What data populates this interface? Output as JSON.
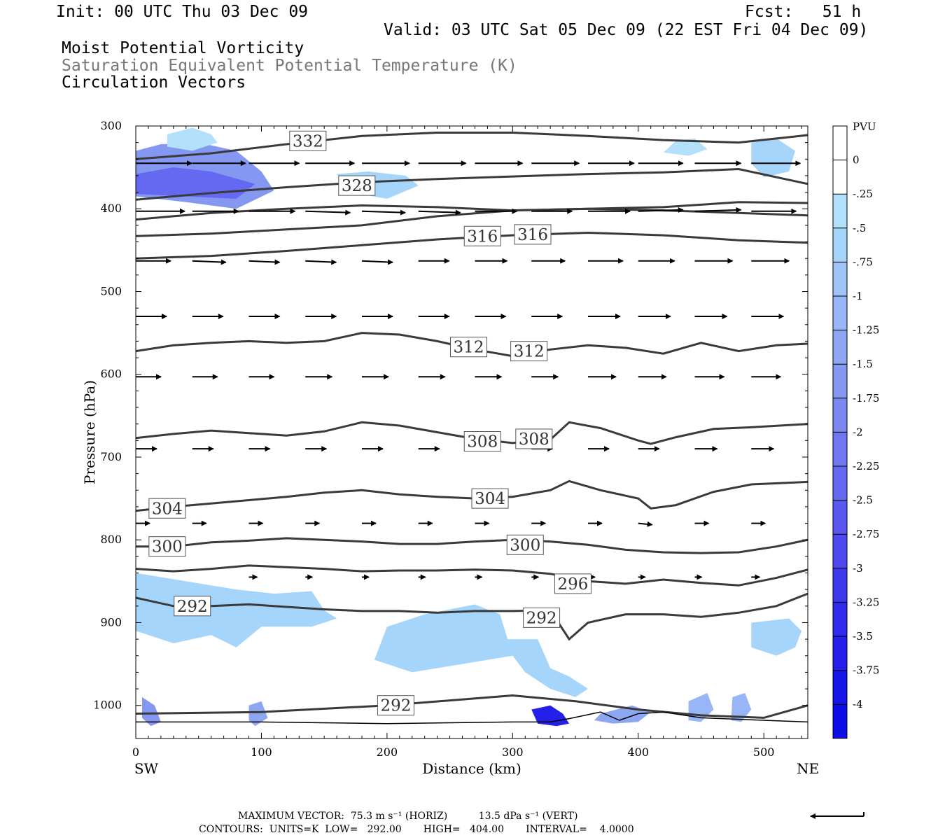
{
  "header": {
    "init": "Init: 00 UTC Thu 03 Dec 09",
    "fcst": "Fcst:   51 h",
    "valid": "Valid: 03 UTC Sat 05 Dec 09 (22 EST Fri 04 Dec 09)",
    "line1": "Moist Potential Vorticity",
    "line2": "Saturation Equivalent Potential Temperature (K)",
    "line3": "Circulation Vectors"
  },
  "colors": {
    "isentrope": "#3a3a3a",
    "mpv_light": "#b3e0fb",
    "mpv_mid": "#8ea7f3",
    "mpv_dark": "#5f6cf0",
    "mpv_darkest": "#1417e8"
  },
  "footer": {
    "max_vector": "MAXIMUM VECTOR:  75.3 m s⁻¹ (HORIZ)          13.5 dPa s⁻¹ (VERT)",
    "contours": "CONTOURS:  UNITS=K  LOW=   292.00       HIGH=   404.00       INTERVAL=    4.0000"
  },
  "chart_data": {
    "type": "line",
    "ylabel": "Pressure (hPa)",
    "xlabel": "Distance (km)",
    "x_end_labels": [
      "SW",
      "NE"
    ],
    "xlim": [
      0,
      535
    ],
    "ylim": [
      1040,
      300
    ],
    "x_ticks": [
      "0",
      "100",
      "200",
      "300",
      "400",
      "500"
    ],
    "y_ticks": [
      "300",
      "400",
      "500",
      "600",
      "700",
      "800",
      "900",
      "1000"
    ],
    "isentropes": [
      {
        "label": "332",
        "label_x": 137,
        "x": [
          0,
          60,
          120,
          180,
          240,
          300,
          360,
          420,
          480,
          535
        ],
        "p": [
          340,
          333,
          322,
          312,
          308,
          308,
          312,
          317,
          320,
          311
        ]
      },
      {
        "label": "328",
        "label_x": 175,
        "x": [
          0,
          60,
          120,
          180,
          240,
          300,
          360,
          420,
          480,
          535
        ],
        "p": [
          389,
          381,
          374,
          368,
          364,
          361,
          358,
          356,
          352,
          370
        ]
      },
      {
        "label": "",
        "label_x": null,
        "x": [
          0,
          60,
          120,
          180,
          240,
          300,
          360,
          420,
          480,
          535
        ],
        "p": [
          413,
          405,
          400,
          396,
          398,
          402,
          400,
          398,
          392,
          393
        ]
      },
      {
        "label": "316",
        "label_x": 275,
        "x": [
          0,
          60,
          120,
          180,
          240,
          300,
          360,
          420,
          480,
          535
        ],
        "p": [
          433,
          430,
          425,
          420,
          409,
          402,
          400,
          402,
          405,
          408
        ]
      },
      {
        "label": "316",
        "label_x": 315,
        "x": [
          0,
          60,
          120,
          180,
          240,
          300,
          360,
          420,
          480,
          535
        ],
        "p": [
          460,
          457,
          451,
          444,
          437,
          432,
          429,
          432,
          438,
          441
        ]
      },
      {
        "label": "312",
        "label_x": 265,
        "x": [
          0,
          30,
          60,
          90,
          120,
          150,
          180,
          210,
          240,
          270,
          300,
          330,
          360,
          390,
          420,
          450,
          480,
          510,
          535
        ],
        "p": [
          572,
          565,
          562,
          560,
          562,
          560,
          550,
          552,
          560,
          570,
          578,
          570,
          565,
          568,
          575,
          562,
          572,
          565,
          563
        ]
      },
      {
        "label": "312",
        "label_x": 312,
        "x": [],
        "p": []
      },
      {
        "label": "308",
        "label_x": 280,
        "x": [
          0,
          30,
          60,
          90,
          120,
          150,
          180,
          210,
          240,
          270,
          300,
          330,
          345,
          370,
          400,
          410,
          430,
          460,
          490,
          535
        ],
        "p": [
          677,
          672,
          668,
          671,
          674,
          669,
          658,
          662,
          670,
          678,
          683,
          679,
          658,
          665,
          680,
          684,
          676,
          666,
          664,
          660
        ]
      },
      {
        "label": "308",
        "label_x": 315,
        "x": [],
        "p": []
      },
      {
        "label": "304",
        "label_x": 25,
        "x": [
          0,
          30,
          60,
          90,
          120,
          150,
          180,
          210,
          240,
          270,
          300,
          330,
          345,
          370,
          400,
          410,
          430,
          460,
          490,
          535
        ],
        "p": [
          765,
          760,
          756,
          752,
          748,
          743,
          740,
          745,
          748,
          750,
          748,
          740,
          729,
          740,
          750,
          762,
          758,
          742,
          733,
          730
        ]
      },
      {
        "label": "300",
        "label_x": 25,
        "x": [
          0,
          30,
          60,
          90,
          120,
          150,
          180,
          210,
          240,
          270,
          300,
          330,
          360,
          390,
          420,
          450,
          480,
          510,
          535
        ],
        "p": [
          808,
          808,
          803,
          801,
          798,
          800,
          802,
          805,
          805,
          802,
          800,
          802,
          806,
          812,
          815,
          816,
          815,
          808,
          800
        ]
      },
      {
        "label": "296",
        "label_x": 350,
        "x": [
          0,
          30,
          60,
          90,
          120,
          150,
          180,
          210,
          240,
          270,
          300,
          330,
          360,
          390,
          420,
          450,
          480,
          510,
          535
        ],
        "p": [
          835,
          838,
          835,
          831,
          833,
          835,
          838,
          837,
          837,
          836,
          837,
          841,
          850,
          853,
          848,
          852,
          855,
          846,
          836
        ]
      },
      {
        "label": "292",
        "label_x": 45,
        "x": [
          0,
          30,
          60,
          90,
          120,
          150,
          180,
          210,
          240,
          270,
          300,
          330,
          345,
          360,
          390,
          420,
          450,
          480,
          510,
          535
        ],
        "p": [
          870,
          880,
          880,
          878,
          881,
          884,
          886,
          886,
          888,
          886,
          886,
          885,
          920,
          900,
          890,
          890,
          893,
          888,
          880,
          865
        ]
      },
      {
        "label": "292",
        "label_x": 210,
        "x": [
          0,
          100,
          200,
          300,
          350,
          400,
          450,
          500,
          535
        ],
        "p": [
          1010,
          1008,
          1000,
          988,
          995,
          1005,
          1012,
          1015,
          1000
        ]
      }
    ],
    "mpv_legend": {
      "units": "PVU",
      "levels": [
        "0",
        "-.25",
        "-.5",
        "-.75",
        "-1",
        "-1.25",
        "-1.5",
        "-1.75",
        "-2",
        "-2.25",
        "-2.5",
        "-2.75",
        "-3",
        "-3.25",
        "-3.5",
        "-3.75",
        "-4"
      ],
      "colors": [
        "#ffffff",
        "#ffffff",
        "#b3e0fb",
        "#a6d5fb",
        "#9fc5f8",
        "#98b6f7",
        "#8ea7f3",
        "#8498f1",
        "#7a87f0",
        "#6f78f0",
        "#6568f1",
        "#5a58f0",
        "#4d49ee",
        "#3f39ee",
        "#3129ec",
        "#2420ea",
        "#1417e8",
        "#0b0ee6"
      ]
    },
    "mpv_regions": [
      {
        "x": [
          0,
          20,
          50,
          80,
          100,
          110,
          80,
          40,
          0
        ],
        "p": [
          330,
          322,
          320,
          330,
          355,
          378,
          400,
          392,
          385
        ],
        "level": -1.5
      },
      {
        "x": [
          0,
          30,
          60,
          95,
          80,
          40,
          0
        ],
        "p": [
          358,
          350,
          355,
          370,
          388,
          385,
          382
        ],
        "level": -2.25
      },
      {
        "x": [
          160,
          185,
          215,
          225,
          200,
          170
        ],
        "p": [
          358,
          355,
          360,
          372,
          388,
          380
        ],
        "level": -0.5
      },
      {
        "x": [
          25,
          45,
          60,
          65,
          45,
          25
        ],
        "p": [
          310,
          302,
          310,
          320,
          330,
          325
        ],
        "level": -0.25
      },
      {
        "x": [
          430,
          445,
          455,
          440,
          420
        ],
        "p": [
          318,
          315,
          328,
          336,
          332
        ],
        "level": -0.25
      },
      {
        "x": [
          490,
          510,
          525,
          520,
          500,
          490
        ],
        "p": [
          320,
          315,
          330,
          355,
          362,
          345
        ],
        "level": -0.5
      },
      {
        "x": [
          0,
          40,
          80,
          110,
          140,
          150,
          160,
          140,
          100,
          80,
          60,
          30,
          0
        ],
        "p": [
          840,
          850,
          860,
          865,
          862,
          885,
          895,
          905,
          905,
          930,
          915,
          925,
          910
        ],
        "level": -0.5
      },
      {
        "x": [
          200,
          230,
          270,
          290,
          300,
          260,
          220,
          190
        ],
        "p": [
          905,
          890,
          878,
          890,
          940,
          950,
          960,
          945
        ],
        "level": -0.5
      },
      {
        "x": [
          290,
          320,
          330,
          345,
          360,
          350,
          330,
          310
        ],
        "p": [
          920,
          920,
          955,
          965,
          980,
          990,
          980,
          960
        ],
        "level": -0.5
      },
      {
        "x": [
          490,
          520,
          530,
          525,
          510,
          490
        ],
        "p": [
          900,
          895,
          910,
          930,
          940,
          930
        ],
        "level": -0.5
      },
      {
        "x": [
          5,
          15,
          20,
          12,
          5
        ],
        "p": [
          990,
          1000,
          1020,
          1025,
          1015
        ],
        "level": -1.5
      },
      {
        "x": [
          90,
          100,
          105,
          95,
          90
        ],
        "p": [
          1000,
          995,
          1015,
          1025,
          1018
        ],
        "level": -1.25
      },
      {
        "x": [
          315,
          330,
          340,
          345,
          335,
          320
        ],
        "p": [
          1005,
          1000,
          1010,
          1022,
          1025,
          1022
        ],
        "level": -3.5
      },
      {
        "x": [
          370,
          395,
          410,
          400,
          380,
          365
        ],
        "p": [
          1010,
          1000,
          1008,
          1020,
          1022,
          1018
        ],
        "level": -1.25
      },
      {
        "x": [
          440,
          455,
          460,
          450,
          440
        ],
        "p": [
          995,
          985,
          1005,
          1020,
          1018
        ],
        "level": -1.0
      },
      {
        "x": [
          475,
          485,
          490,
          482,
          474
        ],
        "p": [
          990,
          985,
          1005,
          1020,
          1018
        ],
        "level": -1.0
      }
    ],
    "vectors": [
      {
        "p": 345,
        "x": [
          0,
          45,
          90,
          135,
          180,
          225,
          270,
          315,
          360,
          400,
          445,
          490,
          535
        ],
        "u": [
          40,
          38,
          36,
          35,
          34,
          34,
          34,
          34,
          33,
          32,
          33,
          35,
          38
        ],
        "w": [
          0,
          0,
          0,
          0,
          0,
          0,
          0,
          0,
          0,
          0,
          0,
          0,
          -1
        ]
      },
      {
        "p": 403,
        "x": [
          0,
          45,
          90,
          135,
          180,
          225,
          270,
          315,
          360,
          400,
          445,
          490,
          535
        ],
        "u": [
          35,
          33,
          33,
          32,
          31,
          30,
          30,
          29,
          30,
          32,
          33,
          32,
          30
        ],
        "w": [
          0,
          0,
          0,
          1,
          1,
          1,
          0,
          0,
          0,
          -1,
          -1,
          0,
          2
        ]
      },
      {
        "p": 463,
        "x": [
          0,
          45,
          90,
          135,
          180,
          225,
          270,
          315,
          360,
          400,
          445,
          490,
          535
        ],
        "u": [
          25,
          24,
          22,
          22,
          22,
          22,
          23,
          24,
          25,
          26,
          27,
          27,
          25
        ],
        "w": [
          0,
          1,
          1,
          1,
          1,
          0,
          0,
          0,
          0,
          0,
          0,
          0,
          1
        ]
      },
      {
        "p": 530,
        "x": [
          0,
          45,
          90,
          135,
          180,
          225,
          270,
          315,
          360,
          400,
          445,
          490,
          535
        ],
        "u": [
          22,
          22,
          22,
          22,
          22,
          22,
          22,
          22,
          23,
          23,
          23,
          23,
          22
        ],
        "w": [
          0,
          0,
          0,
          0,
          0,
          0,
          0,
          0,
          0,
          0,
          0,
          0,
          0
        ]
      },
      {
        "p": 603,
        "x": [
          0,
          45,
          90,
          135,
          180,
          225,
          270,
          315,
          360,
          400,
          445,
          490,
          535
        ],
        "u": [
          18,
          18,
          18,
          19,
          19,
          19,
          19,
          19,
          20,
          20,
          21,
          21,
          20
        ],
        "w": [
          0,
          0,
          0,
          0,
          0,
          0,
          0,
          0,
          0,
          0,
          0,
          0,
          0
        ]
      },
      {
        "p": 690,
        "x": [
          0,
          45,
          90,
          135,
          180,
          225,
          270,
          315,
          360,
          400,
          445,
          490,
          535
        ],
        "u": [
          15,
          15,
          15,
          15,
          15,
          15,
          15,
          15,
          15,
          15,
          16,
          16,
          16
        ],
        "w": [
          0,
          0,
          0,
          0,
          0,
          0,
          0,
          0,
          0,
          0,
          0,
          0,
          0
        ]
      },
      {
        "p": 780,
        "x": [
          0,
          45,
          90,
          135,
          180,
          225,
          270,
          315,
          360,
          400,
          445,
          490,
          535
        ],
        "u": [
          10,
          10,
          10,
          10,
          10,
          10,
          10,
          10,
          10,
          10,
          10,
          10,
          10
        ],
        "w": [
          0,
          0,
          0,
          0,
          0,
          0,
          0,
          0,
          0,
          1,
          0,
          0,
          0
        ]
      },
      {
        "p": 845,
        "x": [
          90,
          135,
          180,
          225,
          270,
          315,
          360,
          400,
          445,
          490
        ],
        "u": [
          6,
          5,
          5,
          5,
          5,
          5,
          5,
          5,
          5,
          6
        ],
        "w": [
          0,
          0,
          0,
          0,
          0,
          0,
          0,
          0,
          0,
          0
        ]
      }
    ]
  }
}
